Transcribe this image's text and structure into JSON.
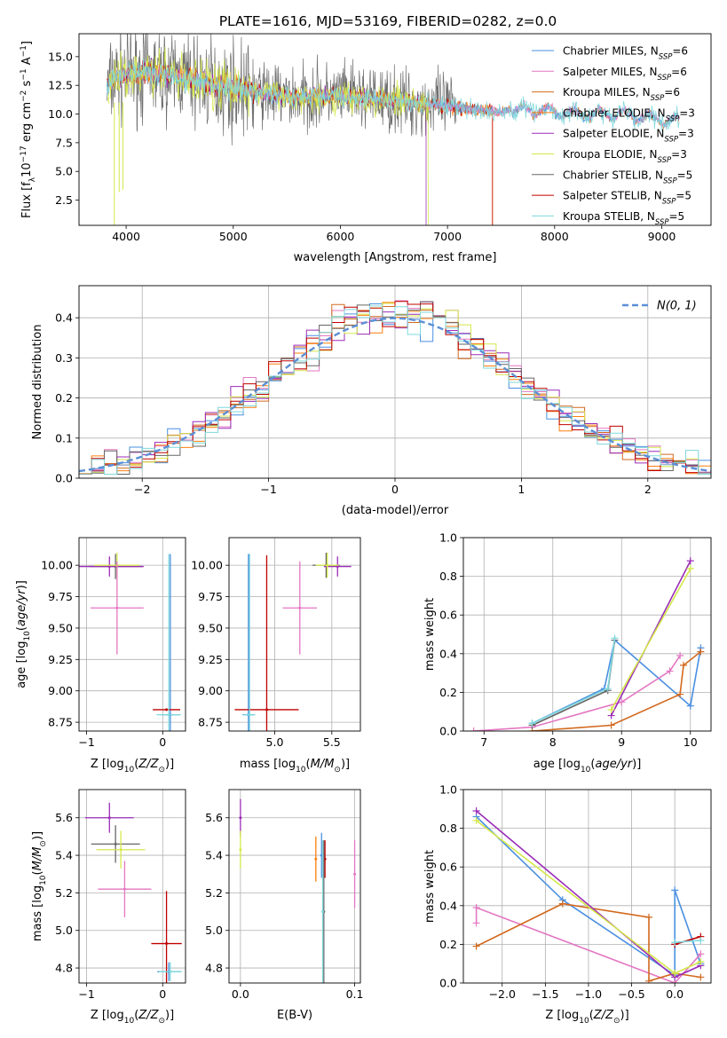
{
  "title": "PLATE=1616, MJD=53169, FIBERID=0282, z=0.0",
  "colors": {
    "chabrier_miles": "#4a90e2",
    "salpeter_miles": "#e377c2",
    "kroupa_miles": "#d2691e",
    "chabrier_elodie": "#ff7f0e",
    "salpeter_elodie": "#9b2db8",
    "kroupa_elodie": "#d4e84a",
    "chabrier_stelib": "#666666",
    "salpeter_stelib": "#c00000",
    "kroupa_stelib": "#7fd8dc",
    "normal": "#5b8fd6"
  },
  "chart_data": [
    {
      "id": "spectrum",
      "type": "line",
      "xlabel": "wavelength [Angstrom, rest frame]",
      "ylabel": "Flux [f_λ10^-17 erg cm^-2 s^-1 A^-1]",
      "xlim": [
        3560,
        9460
      ],
      "ylim": [
        0.3,
        17.0
      ],
      "xticks": [
        4000,
        5000,
        6000,
        7000,
        8000,
        9000
      ],
      "yticks": [
        2.5,
        5.0,
        7.5,
        10.0,
        12.5,
        15.0
      ],
      "grid": false,
      "legend_position": "upper-right",
      "legend": [
        "Chabrier MILES, N_SSP=6",
        "Salpeter MILES, N_SSP=6",
        "Kroupa MILES, N_SSP=6",
        "Chabrier ELODIE, N_SSP=3",
        "Salpeter ELODIE, N_SSP=3",
        "Kroupa ELODIE, N_SSP=3",
        "Chabrier STELIB, N_SSP=5",
        "Salpeter STELIB, N_SSP=5",
        "Kroupa STELIB, N_SSP=5"
      ],
      "approx_continuum": {
        "x": [
          3820,
          3900,
          4000,
          4200,
          4500,
          4800,
          5000,
          5500,
          6000,
          6500,
          7000,
          7400,
          7800,
          8200,
          8600,
          9000,
          9300
        ],
        "y": [
          12.3,
          13.2,
          13.5,
          13.6,
          13.3,
          12.6,
          12.3,
          11.5,
          11.6,
          11.1,
          10.7,
          10.2,
          10.4,
          10.0,
          10.0,
          9.5,
          9.2
        ]
      }
    },
    {
      "id": "residuals",
      "type": "line",
      "xlabel": "(data-model)/error",
      "ylabel": "Normed distribution",
      "xlim": [
        -2.5,
        2.5
      ],
      "ylim": [
        0,
        0.48
      ],
      "xticks": [
        -2,
        -1,
        0,
        1,
        2
      ],
      "yticks": [
        0.0,
        0.1,
        0.2,
        0.3,
        0.4
      ],
      "grid": true,
      "legend_position": "upper-right",
      "normal_label": "N(0, 1)"
    },
    {
      "id": "age_vs_z",
      "type": "scatter",
      "xlabel": "Z [log10(Z/Z⊙)]",
      "ylabel": "age  [log10(age/yr)]",
      "xlim": [
        -1.1,
        0.3
      ],
      "ylim": [
        8.68,
        10.22
      ],
      "xticks": [
        -1,
        0
      ],
      "yticks": [
        8.75,
        9.0,
        9.25,
        9.5,
        9.75,
        10.0
      ],
      "grid": true,
      "points": [
        {
          "s": "chabrier_stelib",
          "x": -0.62,
          "y": 9.99,
          "xe": 0.35,
          "ye": 0.1
        },
        {
          "s": "salpeter_elodie",
          "x": -0.7,
          "y": 9.99,
          "xe": 0.45,
          "ye": 0.08
        },
        {
          "s": "kroupa_elodie",
          "x": -0.6,
          "y": 10.0,
          "xe": 0.3,
          "ye": 0.1
        },
        {
          "s": "salpeter_miles",
          "x": -0.6,
          "y": 9.66,
          "xe": 0.35,
          "ye": 0.37
        },
        {
          "s": "chabrier_miles",
          "x": 0.1,
          "y": 8.81,
          "xe": 0.12,
          "ye": 1.28
        },
        {
          "s": "salpeter_stelib",
          "x": 0.05,
          "y": 8.85,
          "xe": 0.18,
          "ye": 0.0
        },
        {
          "s": "kroupa_stelib",
          "x": 0.08,
          "y": 8.81,
          "xe": 0.16,
          "ye": 1.28
        }
      ]
    },
    {
      "id": "age_vs_mass",
      "type": "scatter",
      "xlabel": "mass [log10(M/M⊙)]",
      "ylabel": "",
      "xlim": [
        4.6,
        5.75
      ],
      "ylim": [
        8.68,
        10.22
      ],
      "xticks": [
        5.0,
        5.5
      ],
      "yticks": [
        8.75,
        9.0,
        9.25,
        9.5,
        9.75,
        10.0
      ],
      "grid": true,
      "points": [
        {
          "s": "chabrier_stelib",
          "x": 5.45,
          "y": 10.0,
          "xe": 0.12,
          "ye": 0.1
        },
        {
          "s": "salpeter_elodie",
          "x": 5.55,
          "y": 9.99,
          "xe": 0.12,
          "ye": 0.08
        },
        {
          "s": "kroupa_elodie",
          "x": 5.46,
          "y": 10.0,
          "xe": 0.1,
          "ye": 0.1
        },
        {
          "s": "salpeter_miles",
          "x": 5.22,
          "y": 9.66,
          "xe": 0.15,
          "ye": 0.37
        },
        {
          "s": "chabrier_miles",
          "x": 4.77,
          "y": 8.81,
          "xe": 0.05,
          "ye": 1.28
        },
        {
          "s": "salpeter_stelib",
          "x": 4.93,
          "y": 8.85,
          "xe": 0.28,
          "ye": 1.23
        },
        {
          "s": "kroupa_stelib",
          "x": 4.78,
          "y": 8.81,
          "xe": 0.05,
          "ye": 1.28
        }
      ]
    },
    {
      "id": "weight_vs_age",
      "type": "line",
      "xlabel": "age  [log10(age/yr)]",
      "ylabel": "mass weight",
      "xlim": [
        6.7,
        10.3
      ],
      "ylim": [
        0,
        1.0
      ],
      "xticks": [
        7,
        8,
        9,
        10
      ],
      "yticks": [
        0.0,
        0.2,
        0.4,
        0.6,
        0.8,
        1.0
      ],
      "grid": true,
      "series": [
        {
          "s": "chabrier_miles",
          "x": [
            7.7,
            8.75,
            8.9,
            10.0,
            10.15
          ],
          "y": [
            0.04,
            0.22,
            0.47,
            0.13,
            0.43
          ]
        },
        {
          "s": "salpeter_miles",
          "x": [
            6.85,
            7.7,
            9.0,
            9.7,
            9.85
          ],
          "y": [
            0.0,
            0.02,
            0.15,
            0.31,
            0.39
          ]
        },
        {
          "s": "kroupa_miles",
          "x": [
            7.7,
            8.85,
            9.85,
            9.9,
            10.15
          ],
          "y": [
            0.0,
            0.03,
            0.19,
            0.34,
            0.41
          ]
        },
        {
          "s": "salpeter_elodie",
          "x": [
            8.85,
            10.0
          ],
          "y": [
            0.08,
            0.88
          ]
        },
        {
          "s": "kroupa_elodie",
          "x": [
            8.85,
            10.0
          ],
          "y": [
            0.11,
            0.84
          ]
        },
        {
          "s": "chabrier_stelib",
          "x": [
            7.7,
            8.8,
            8.9
          ],
          "y": [
            0.03,
            0.21,
            0.47
          ]
        },
        {
          "s": "kroupa_stelib",
          "x": [
            7.7,
            8.8,
            8.9
          ],
          "y": [
            0.04,
            0.22,
            0.48
          ]
        }
      ]
    },
    {
      "id": "mass_vs_z",
      "type": "scatter",
      "xlabel": "Z [log10(Z/Z⊙)]",
      "ylabel": "mass [log10(M/M⊙)]",
      "xlim": [
        -1.1,
        0.3
      ],
      "ylim": [
        4.72,
        5.75
      ],
      "xticks": [
        -1,
        0
      ],
      "yticks": [
        4.8,
        5.0,
        5.2,
        5.4,
        5.6
      ],
      "grid": true,
      "points": [
        {
          "s": "salpeter_elodie",
          "x": -0.7,
          "y": 5.6,
          "xe": 0.32,
          "ye": 0.08
        },
        {
          "s": "chabrier_stelib",
          "x": -0.62,
          "y": 5.46,
          "xe": 0.32,
          "ye": 0.1
        },
        {
          "s": "kroupa_elodie",
          "x": -0.55,
          "y": 5.43,
          "xe": 0.32,
          "ye": 0.1
        },
        {
          "s": "salpeter_miles",
          "x": -0.5,
          "y": 5.22,
          "xe": 0.35,
          "ye": 0.15
        },
        {
          "s": "chabrier_miles",
          "x": 0.08,
          "y": 4.78,
          "xe": 0.15,
          "ye": 0.05
        },
        {
          "s": "salpeter_stelib",
          "x": 0.05,
          "y": 4.93,
          "xe": 0.2,
          "ye": 0.28
        },
        {
          "s": "kroupa_stelib",
          "x": 0.1,
          "y": 4.78,
          "xe": 0.15,
          "ye": 0.05
        }
      ]
    },
    {
      "id": "mass_vs_ebv",
      "type": "scatter",
      "xlabel": "E(B-V)",
      "ylabel": "",
      "xlim": [
        -0.01,
        0.105
      ],
      "ylim": [
        4.72,
        5.75
      ],
      "xticks": [
        0.0,
        0.1
      ],
      "yticks": [
        4.8,
        5.0,
        5.2,
        5.4,
        5.6
      ],
      "grid": true,
      "points": [
        {
          "s": "salpeter_elodie",
          "x": 0.0,
          "y": 5.6,
          "xe": 0,
          "ye": 0.1
        },
        {
          "s": "kroupa_elodie",
          "x": 0.0,
          "y": 5.43,
          "xe": 0,
          "ye": 0.1
        },
        {
          "s": "chabrier_elodie",
          "x": 0.066,
          "y": 5.38,
          "xe": 0,
          "ye": 0.12
        },
        {
          "s": "chabrier_miles",
          "x": 0.071,
          "y": 5.4,
          "xe": 0,
          "ye": 0.12
        },
        {
          "s": "salpeter_stelib",
          "x": 0.074,
          "y": 5.38,
          "xe": 0,
          "ye": 0.1
        },
        {
          "s": "salpeter_miles",
          "x": 0.1,
          "y": 5.3,
          "xe": 0,
          "ye": 0.18
        },
        {
          "s": "chabrier_stelib",
          "x": 0.073,
          "y": 5.1,
          "xe": 0,
          "ye": 0.38
        },
        {
          "s": "kroupa_stelib",
          "x": 0.072,
          "y": 5.1,
          "xe": 0,
          "ye": 0.38
        }
      ]
    },
    {
      "id": "weight_vs_z",
      "type": "line",
      "xlabel": "Z [log10(Z/Z⊙)]",
      "ylabel": "mass weight",
      "xlim": [
        -2.45,
        0.42
      ],
      "ylim": [
        0,
        1.0
      ],
      "xticks": [
        -2.0,
        -1.5,
        -1.0,
        -0.5,
        0.0
      ],
      "yticks": [
        0.0,
        0.2,
        0.4,
        0.6,
        0.8,
        1.0
      ],
      "grid": true,
      "series": [
        {
          "s": "chabrier_miles",
          "x": [
            -2.3,
            -1.3,
            0.0,
            0.0,
            0.3
          ],
          "y": [
            0.86,
            0.43,
            0.04,
            0.48,
            0.1
          ]
        },
        {
          "s": "salpeter_miles",
          "x": [
            -2.3,
            -2.3,
            0.0,
            0.3
          ],
          "y": [
            0.31,
            0.39,
            0.0,
            0.15
          ]
        },
        {
          "s": "kroupa_miles",
          "x": [
            -2.3,
            -1.3,
            -0.3,
            -0.3,
            0.0,
            0.3
          ],
          "y": [
            0.19,
            0.41,
            0.34,
            0.01,
            0.05,
            0.03
          ]
        },
        {
          "s": "salpeter_elodie",
          "x": [
            -2.3,
            0.0,
            0.3
          ],
          "y": [
            0.89,
            0.03,
            0.09
          ]
        },
        {
          "s": "kroupa_elodie",
          "x": [
            -2.3,
            0.0,
            0.3
          ],
          "y": [
            0.84,
            0.05,
            0.11
          ]
        },
        {
          "s": "salpeter_stelib",
          "x": [
            0.0,
            0.3
          ],
          "y": [
            0.2,
            0.24
          ]
        },
        {
          "s": "kroupa_stelib",
          "x": [
            0.0,
            0.3
          ],
          "y": [
            0.21,
            0.22
          ]
        }
      ]
    }
  ]
}
